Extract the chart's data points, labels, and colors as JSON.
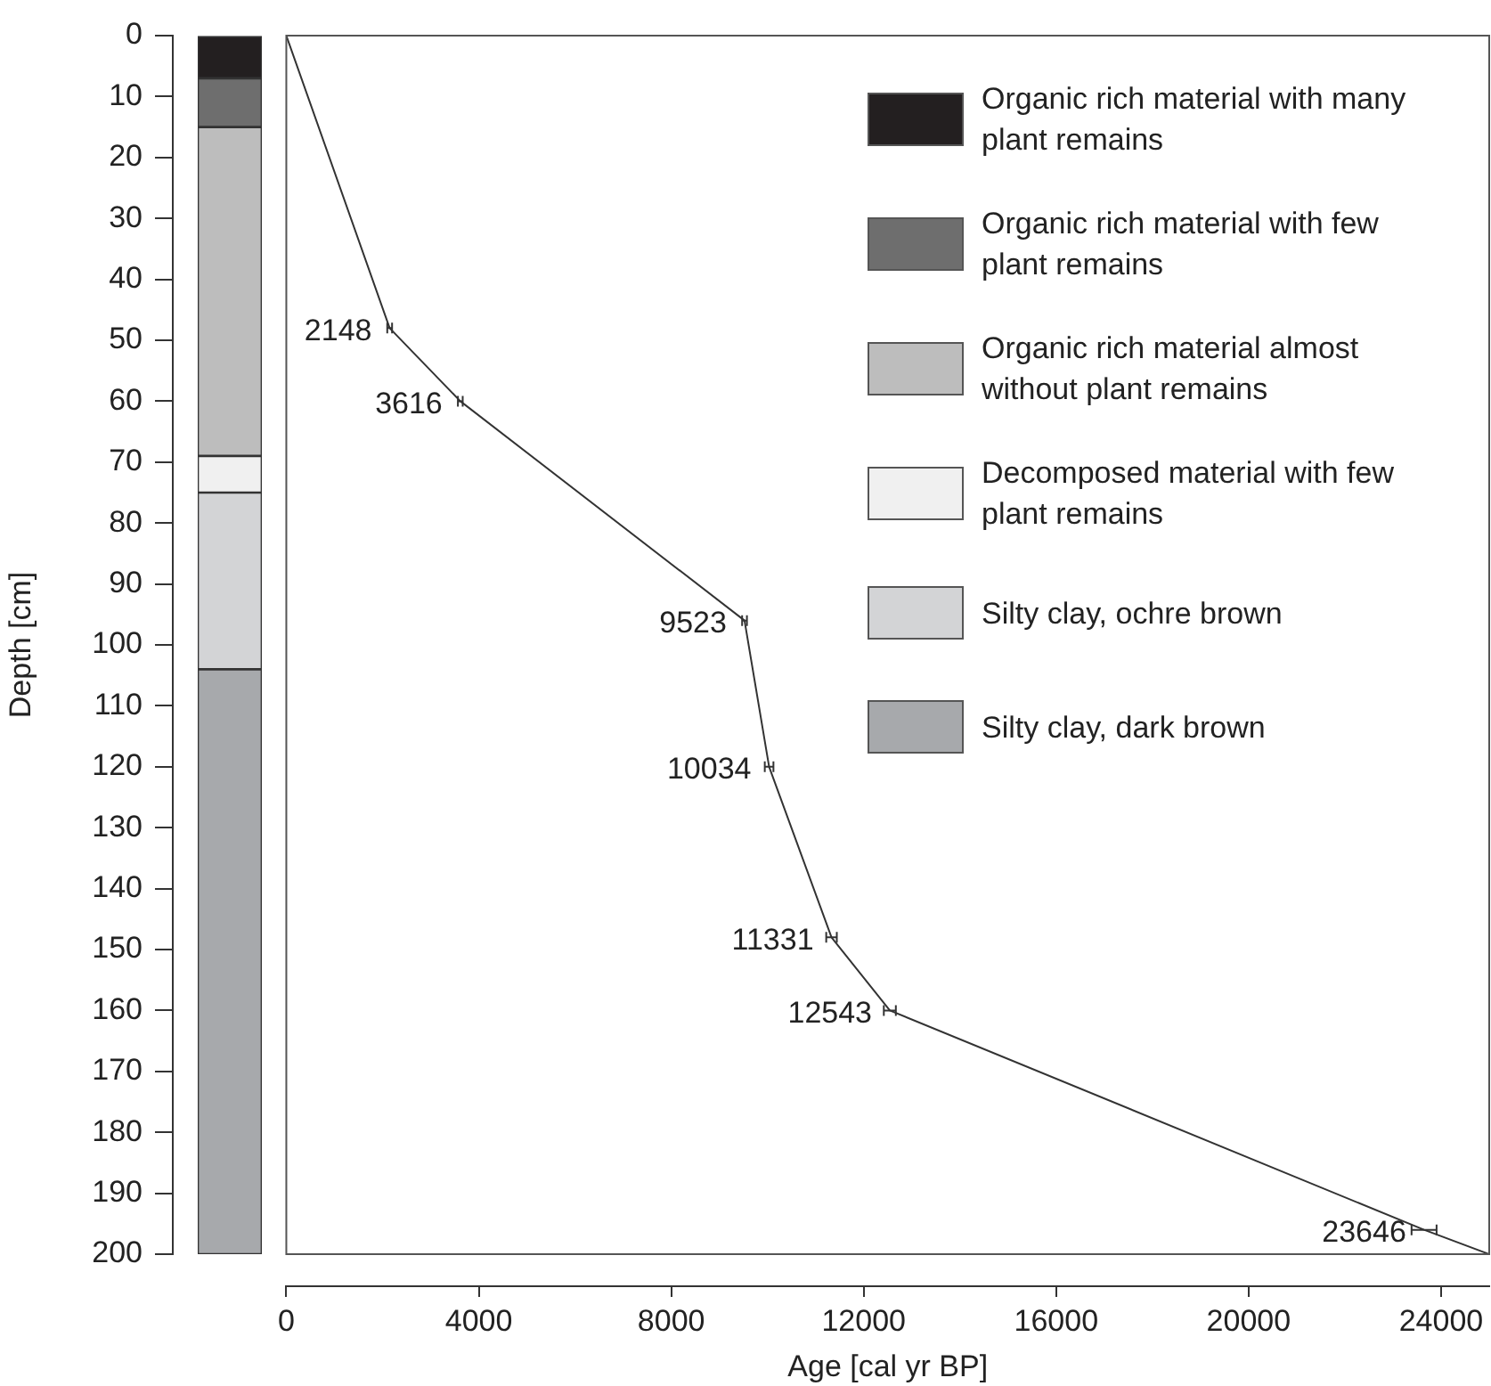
{
  "chart_data": [
    {
      "type": "bar",
      "stacked": true,
      "categories": [
        null
      ],
      "ylabel": "Depth [cm]",
      "ylim": [
        200,
        0
      ],
      "yticks": [
        0,
        10,
        20,
        30,
        40,
        50,
        60,
        70,
        80,
        90,
        100,
        110,
        120,
        130,
        140,
        150,
        160,
        170,
        180,
        190,
        200
      ],
      "tick_labels": "y",
      "legend": "right",
      "series": [
        {
          "name": "Organic rich material with many plant remains",
          "color": "#231f20",
          "values": [
            7
          ]
        },
        {
          "name": "Organic rich material with few plant remains",
          "color": "#6e6e6e",
          "values": [
            8
          ]
        },
        {
          "name": "Organic rich material almost without plant remains",
          "color": "#bdbdbd",
          "values": [
            54
          ]
        },
        {
          "name": "Decomposed material with few plant remains",
          "color": "#f0f0f0",
          "values": [
            6
          ]
        },
        {
          "name": "Silty clay, ochre brown",
          "color": "#d3d4d6",
          "values": [
            29
          ]
        },
        {
          "name": "Silty clay, dark brown",
          "color": "#a7a9ac",
          "values": [
            96
          ]
        }
      ]
    },
    {
      "type": "line",
      "xlabel": "Age [cal yr BP]",
      "xlim": [
        0,
        25000
      ],
      "xticks": [
        0,
        4000,
        8000,
        12000,
        16000,
        20000,
        24000
      ],
      "ylim": [
        200,
        0
      ],
      "tick_labels": "x",
      "x": [
        0,
        2148,
        3616,
        9523,
        10034,
        11331,
        12543,
        23646,
        25000
      ],
      "series": [
        {
          "color": "#333333",
          "values": [
            0,
            48,
            60,
            96,
            120,
            148,
            160,
            196,
            200
          ],
          "xerrors": [
            null,
            50,
            50,
            50,
            90,
            110,
            125,
            260,
            null
          ]
        }
      ],
      "annotations": [
        {
          "text": "2148",
          "x": 2148,
          "y": 48
        },
        {
          "text": "3616",
          "x": 3616,
          "y": 60
        },
        {
          "text": "9523",
          "x": 9523,
          "y": 96
        },
        {
          "text": "10034",
          "x": 10034,
          "y": 120
        },
        {
          "text": "11331",
          "x": 11331,
          "y": 148
        },
        {
          "text": "12543",
          "x": 12543,
          "y": 160
        },
        {
          "text": "23646",
          "x": 23646,
          "y": 196
        }
      ]
    }
  ]
}
